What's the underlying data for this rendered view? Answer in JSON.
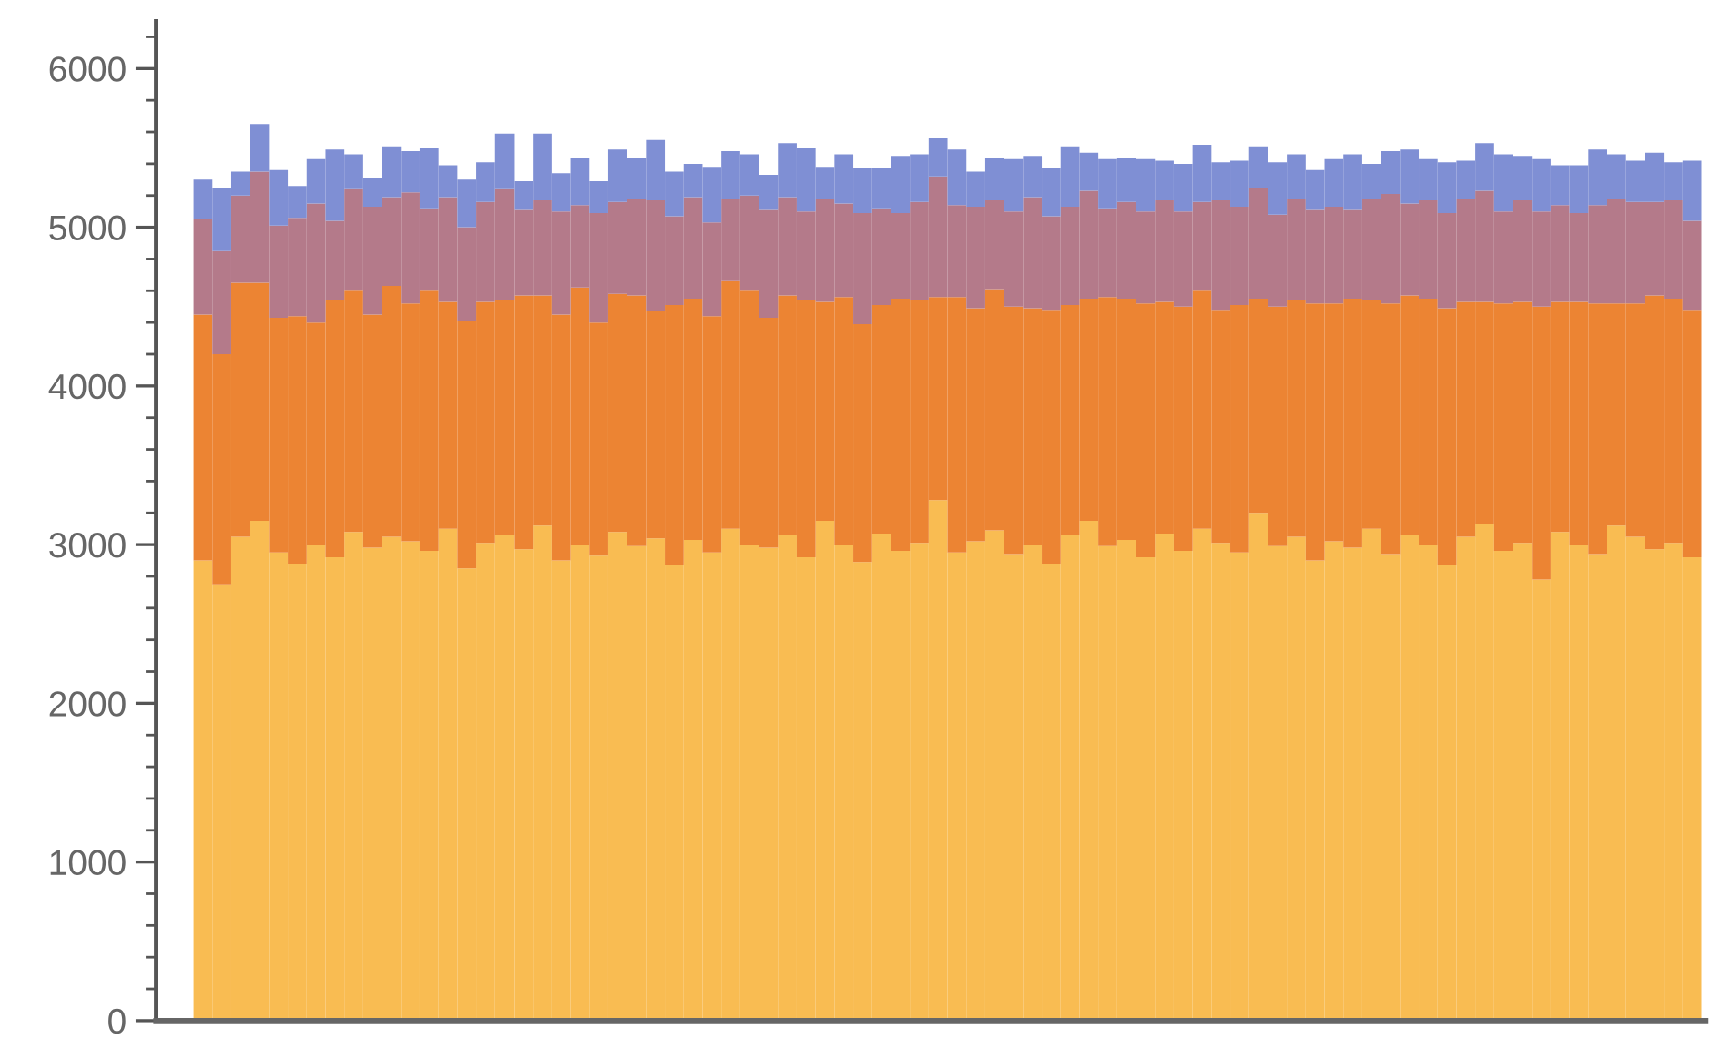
{
  "chart_data": {
    "type": "bar",
    "stacked": true,
    "tick_labels": "y",
    "grid": false,
    "legend": false,
    "categories": [
      null,
      null,
      null,
      null,
      null,
      null,
      null,
      null,
      null,
      null,
      null,
      null,
      null,
      null,
      null,
      null,
      null,
      null,
      null,
      null,
      null,
      null,
      null,
      null,
      null,
      null,
      null,
      null,
      null,
      null,
      null,
      null,
      null,
      null,
      null,
      null,
      null,
      null,
      null,
      null,
      null,
      null,
      null,
      null,
      null,
      null,
      null,
      null,
      null,
      null,
      null,
      null,
      null,
      null,
      null,
      null,
      null,
      null,
      null,
      null,
      null,
      null,
      null,
      null,
      null,
      null,
      null,
      null,
      null,
      null,
      null,
      null,
      null,
      null,
      null,
      null,
      null,
      null,
      null,
      null
    ],
    "series": [
      {
        "color": "#f9bc52",
        "values": [
          2900,
          2750,
          3050,
          3150,
          2950,
          2880,
          3000,
          2920,
          3080,
          2980,
          3050,
          3020,
          2960,
          3100,
          2850,
          3010,
          3060,
          2970,
          3120,
          2900,
          3000,
          2930,
          3080,
          2990,
          3040,
          2870,
          3030,
          2950,
          3100,
          3000,
          2980,
          3060,
          2920,
          3150,
          3000,
          2890,
          3070,
          2960,
          3010,
          3280,
          2950,
          3020,
          3090,
          2940,
          3000,
          2880,
          3060,
          3150,
          2990,
          3030,
          2920,
          3070,
          2960,
          3100,
          3010,
          2950,
          3200,
          2990,
          3050,
          2900,
          3020,
          2980,
          3100,
          2940,
          3060,
          3000,
          2870,
          3050,
          3130,
          2960,
          3010,
          2780,
          3080,
          3000,
          2940,
          3120,
          3050,
          2970,
          3010,
          2920
        ]
      },
      {
        "color": "#ec8433",
        "values": [
          1550,
          1450,
          1600,
          1500,
          1480,
          1560,
          1400,
          1620,
          1520,
          1470,
          1580,
          1500,
          1640,
          1430,
          1560,
          1520,
          1480,
          1600,
          1450,
          1550,
          1620,
          1470,
          1500,
          1580,
          1430,
          1640,
          1520,
          1490,
          1560,
          1600,
          1450,
          1510,
          1620,
          1380,
          1560,
          1500,
          1440,
          1590,
          1530,
          1280,
          1610,
          1470,
          1520,
          1560,
          1490,
          1600,
          1450,
          1400,
          1570,
          1520,
          1600,
          1460,
          1540,
          1500,
          1470,
          1560,
          1350,
          1510,
          1490,
          1620,
          1500,
          1570,
          1440,
          1580,
          1510,
          1550,
          1620,
          1480,
          1400,
          1560,
          1520,
          1720,
          1450,
          1530,
          1580,
          1400,
          1470,
          1600,
          1540,
          1560
        ]
      },
      {
        "color": "#b47a8a",
        "values": [
          600,
          650,
          550,
          700,
          580,
          620,
          750,
          500,
          640,
          680,
          560,
          700,
          520,
          660,
          590,
          630,
          700,
          540,
          600,
          650,
          520,
          690,
          580,
          610,
          700,
          560,
          640,
          590,
          520,
          600,
          680,
          620,
          560,
          650,
          590,
          700,
          610,
          540,
          620,
          760,
          580,
          640,
          560,
          600,
          700,
          590,
          620,
          680,
          560,
          610,
          580,
          640,
          600,
          560,
          690,
          620,
          700,
          580,
          640,
          590,
          610,
          560,
          640,
          690,
          580,
          620,
          600,
          650,
          700,
          580,
          640,
          600,
          610,
          560,
          620,
          660,
          640,
          590,
          620,
          560
        ]
      },
      {
        "color": "#7f8fd4",
        "values": [
          250,
          400,
          150,
          300,
          350,
          200,
          280,
          450,
          220,
          180,
          320,
          260,
          380,
          200,
          300,
          250,
          350,
          180,
          420,
          240,
          300,
          200,
          330,
          260,
          380,
          280,
          210,
          350,
          300,
          260,
          220,
          340,
          400,
          200,
          310,
          280,
          250,
          360,
          300,
          240,
          350,
          220,
          270,
          330,
          260,
          300,
          380,
          240,
          310,
          280,
          330,
          250,
          300,
          360,
          240,
          290,
          260,
          330,
          280,
          250,
          300,
          350,
          220,
          270,
          340,
          260,
          320,
          240,
          300,
          360,
          280,
          330,
          250,
          300,
          350,
          280,
          260,
          310,
          240,
          380
        ]
      }
    ],
    "ylim": [
      0,
      6300
    ],
    "yticks": [
      0,
      1000,
      2000,
      3000,
      4000,
      5000,
      6000
    ]
  }
}
